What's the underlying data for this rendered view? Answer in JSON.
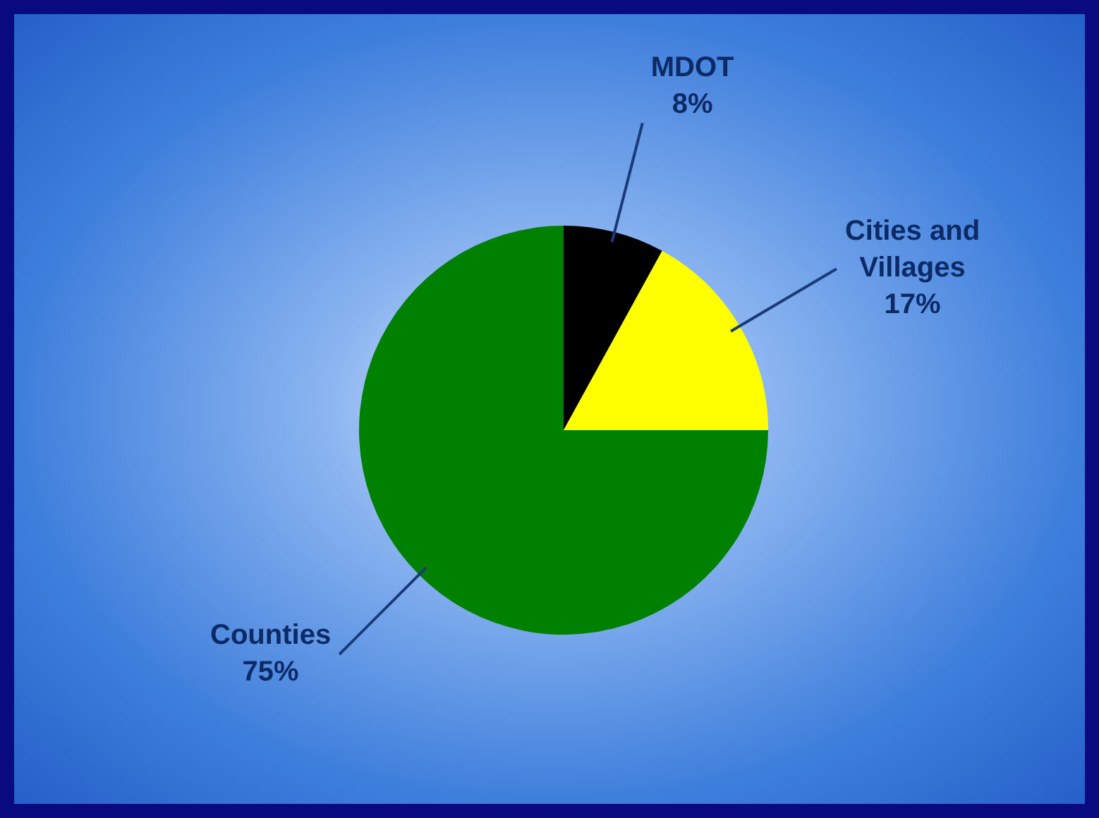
{
  "chart_data": {
    "type": "pie",
    "categories": [
      "MDOT",
      "Cities and Villages",
      "Counties"
    ],
    "values": [
      8,
      17,
      75
    ],
    "value_labels": [
      "8%",
      "17%",
      "75%"
    ],
    "colors": [
      "#000000",
      "#ffff00",
      "#008000"
    ],
    "legend": false
  }
}
